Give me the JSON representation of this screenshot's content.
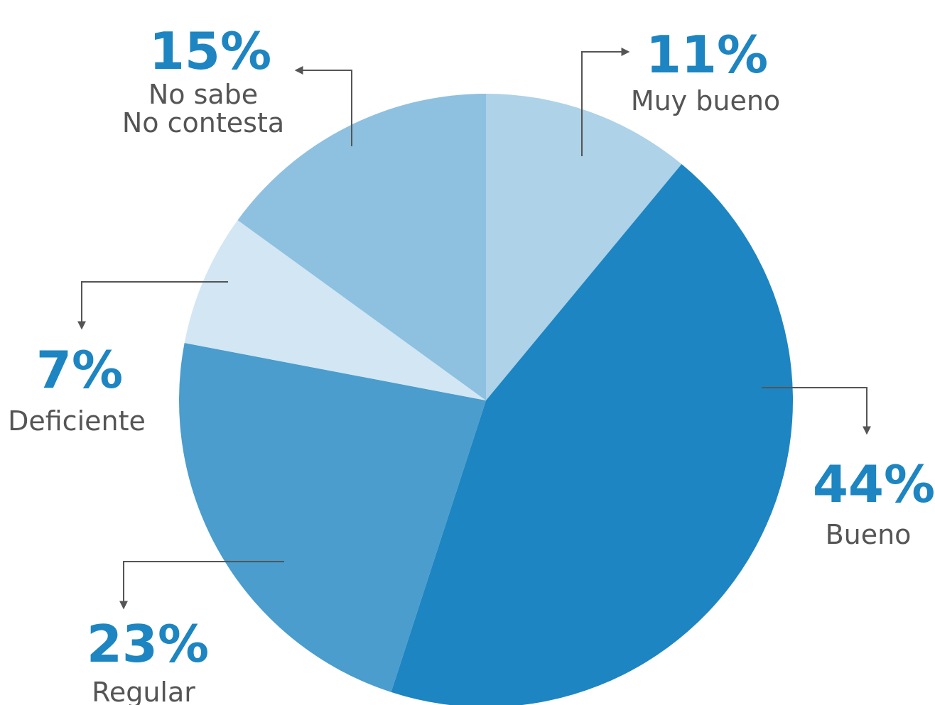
{
  "chart_data": {
    "type": "pie",
    "start_angle_deg": 0,
    "direction": "clockwise",
    "slices": [
      {
        "label_lines": [
          "Muy bueno"
        ],
        "value": 11,
        "value_label": "11%",
        "color": "#aed2e8"
      },
      {
        "label_lines": [
          "Bueno"
        ],
        "value": 44,
        "value_label": "44%",
        "color": "#1d85c1"
      },
      {
        "label_lines": [
          "Regular"
        ],
        "value": 23,
        "value_label": "23%",
        "color": "#4a9dcd"
      },
      {
        "label_lines": [
          "Deficiente"
        ],
        "value": 7,
        "value_label": "7%",
        "color": "#d2e6f4"
      },
      {
        "label_lines": [
          "No sabe",
          "No contesta"
        ],
        "value": 15,
        "value_label": "15%",
        "color": "#8ec0e0"
      }
    ],
    "accent_color": "#1d85c1",
    "label_color": "#555555",
    "leader_color": "#555555"
  }
}
